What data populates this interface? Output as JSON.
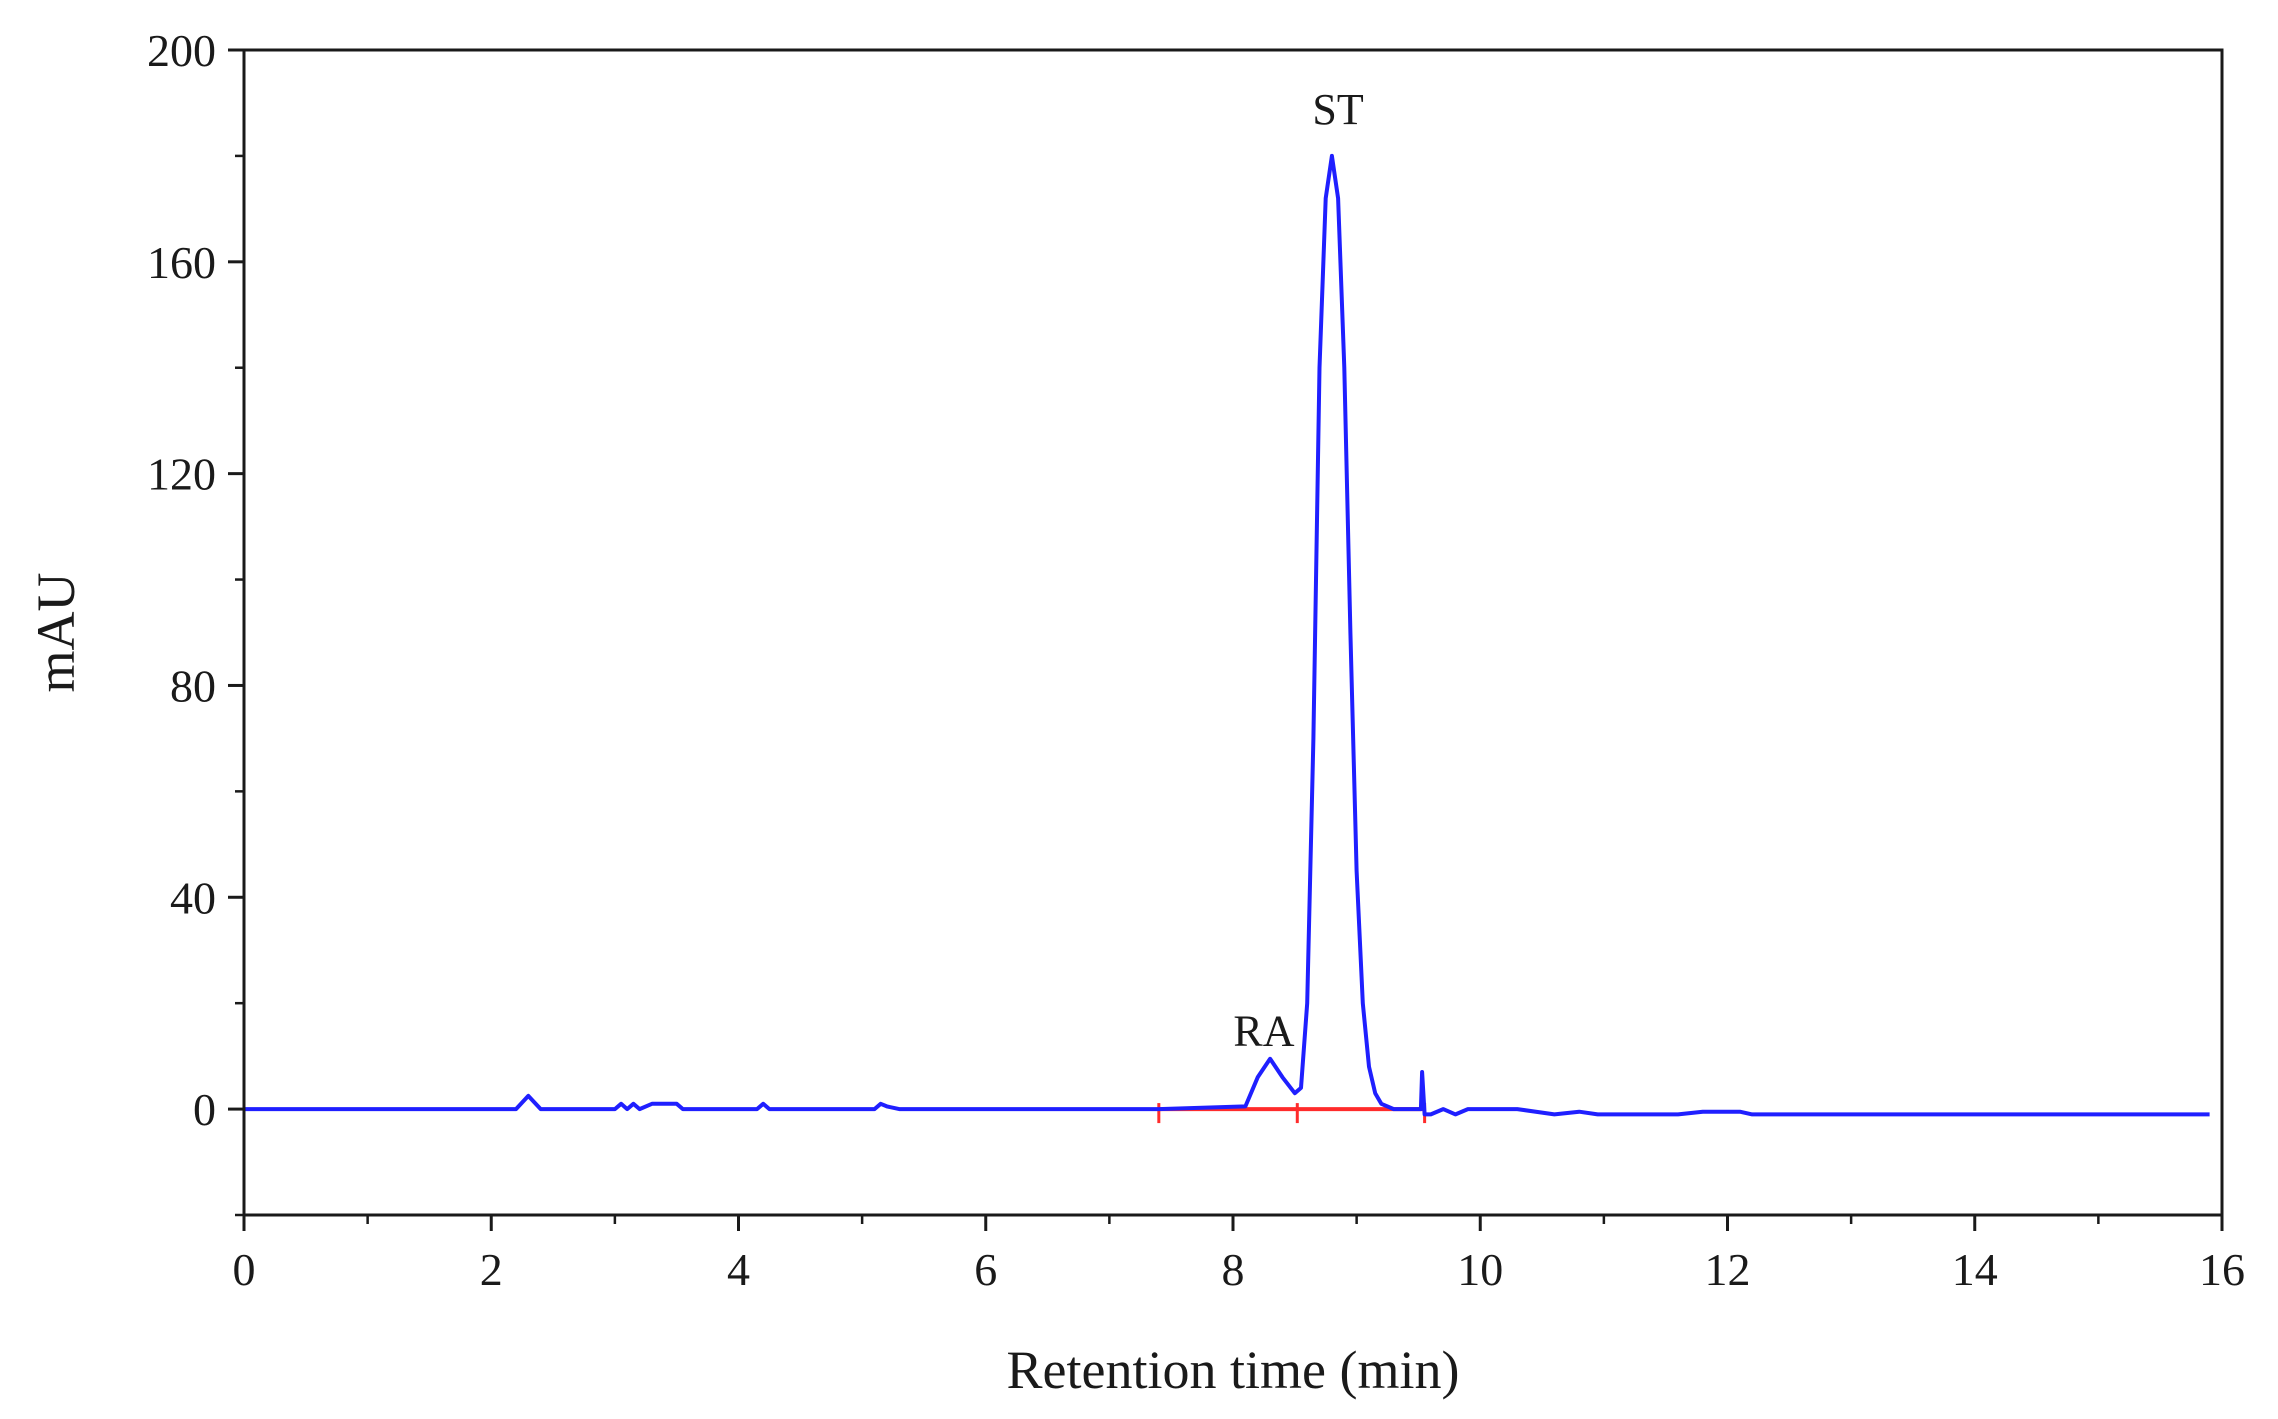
{
  "chart_data": {
    "type": "line",
    "xlabel": "Retention time (min)",
    "ylabel": "mAU",
    "xlim": [
      0,
      16
    ],
    "ylim": [
      -20,
      200
    ],
    "xticks": [
      0,
      2,
      4,
      6,
      8,
      10,
      12,
      14,
      16
    ],
    "yticks": [
      0,
      40,
      80,
      120,
      160,
      200
    ],
    "grid": false,
    "series": [
      {
        "color": "#1f1fff",
        "x": [
          0,
          2.2,
          2.3,
          2.4,
          3.0,
          3.05,
          3.1,
          3.15,
          3.2,
          3.3,
          3.5,
          3.55,
          4.15,
          4.2,
          4.25,
          5.1,
          5.15,
          5.2,
          5.3,
          7.4,
          8.1,
          8.2,
          8.3,
          8.4,
          8.5,
          8.55,
          8.6,
          8.65,
          8.7,
          8.75,
          8.8,
          8.85,
          8.9,
          8.95,
          9.0,
          9.05,
          9.1,
          9.15,
          9.2,
          9.3,
          9.52,
          9.53,
          9.55,
          9.6,
          9.7,
          9.8,
          9.9,
          10.3,
          10.6,
          10.8,
          10.95,
          11.6,
          11.8,
          12.1,
          12.2,
          15.9
        ],
        "y": [
          0,
          0,
          2.5,
          0,
          0,
          1,
          0,
          1,
          0,
          1,
          1,
          0,
          0,
          1,
          0,
          0,
          1,
          0.5,
          0,
          0,
          0.5,
          6,
          9.5,
          6,
          3,
          4,
          20,
          70,
          140,
          172,
          180,
          172,
          140,
          90,
          45,
          20,
          8,
          3,
          1,
          0,
          0,
          7,
          -1,
          -1,
          0,
          -1,
          0,
          0,
          -1,
          -0.5,
          -1,
          -1,
          -0.5,
          -0.5,
          -1,
          -1
        ]
      }
    ],
    "baselines": [
      {
        "color": "#ff2b2b",
        "x": [
          7.4,
          9.55
        ],
        "y": [
          0,
          0
        ],
        "markers_x": [
          7.4,
          8.52,
          9.55
        ]
      }
    ],
    "annotations": [
      {
        "text": "RA",
        "x": 8.25,
        "y": 12
      },
      {
        "text": "ST",
        "x": 8.85,
        "y": 186
      }
    ]
  }
}
